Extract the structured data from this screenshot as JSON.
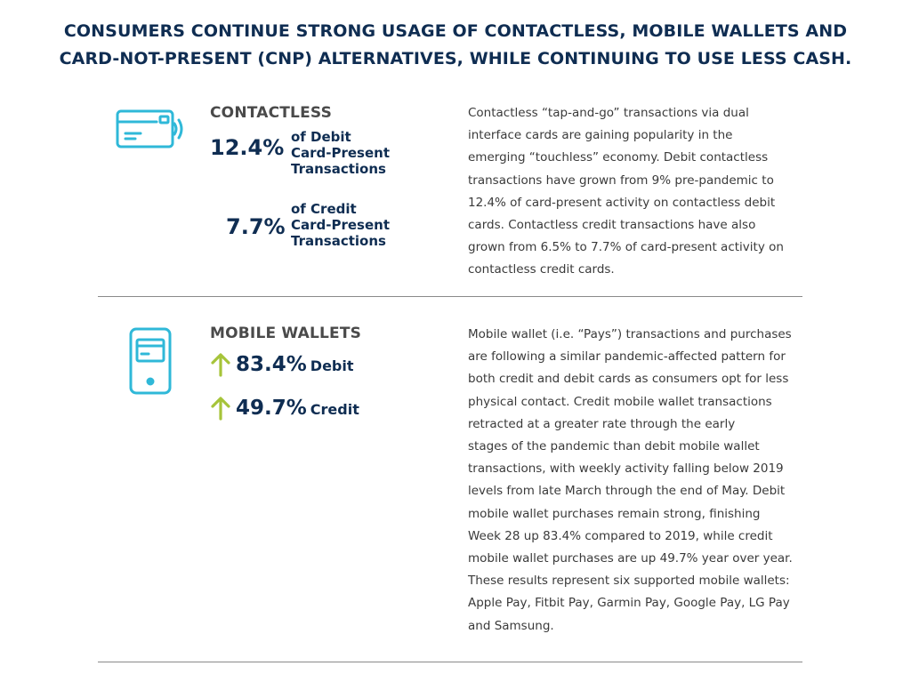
{
  "headline": {
    "line1": "CONSUMERS CONTINUE STRONG USAGE OF CONTACTLESS, MOBILE WALLETS AND",
    "line2": "CARD-NOT-PRESENT (CNP) ALTERNATIVES, WHILE CONTINUING TO USE LESS CASH."
  },
  "colors": {
    "navy": "#0f2d52",
    "icon_cyan": "#2fb8d8",
    "arrow_green": "#a6c43a",
    "divider": "#8a8a8a"
  },
  "contactless": {
    "icon": "contactless-card-icon",
    "title": "CONTACTLESS",
    "debit": {
      "value": "12.4%",
      "desc": [
        "of Debit",
        "Card-Present",
        "Transactions"
      ]
    },
    "credit": {
      "value": "7.7%",
      "desc": [
        "of Credit",
        "Card-Present",
        "Transactions"
      ]
    },
    "body": [
      "Contactless “tap-and-go” transactions via dual",
      "interface cards are gaining popularity in the",
      "emerging “touchless” economy. Debit contactless",
      "transactions have grown from 9% pre-pandemic to",
      "12.4% of card-present activity on contactless debit",
      "cards. Contactless credit transactions have also",
      "grown from 6.5% to 7.7% of card-present activity on",
      "contactless credit cards."
    ]
  },
  "mobile_wallets": {
    "icon": "mobile-phone-card-icon",
    "title": "MOBILE WALLETS",
    "debit": {
      "arrow": "up-arrow-icon",
      "value": "83.4%",
      "label": "Debit"
    },
    "credit": {
      "arrow": "up-arrow-icon",
      "value": "49.7%",
      "label": "Credit"
    },
    "body": [
      "Mobile wallet (i.e. “Pays”) transactions and purchases",
      "are following a similar pandemic-affected pattern for",
      "both credit and debit cards as consumers opt for less",
      "physical contact. Credit mobile wallet transactions",
      "retracted at a greater rate through the early",
      "stages of the pandemic than debit mobile wallet",
      "transactions, with weekly activity falling below 2019",
      "levels from late March through the end of May. Debit",
      "mobile wallet purchases remain strong, finishing",
      "Week 28 up 83.4% compared to 2019, while credit",
      "mobile wallet purchases are up 49.7% year over year.",
      "These results represent six supported mobile wallets:",
      "Apple Pay, Fitbit Pay, Garmin Pay, Google Pay, LG Pay",
      "and Samsung."
    ]
  }
}
